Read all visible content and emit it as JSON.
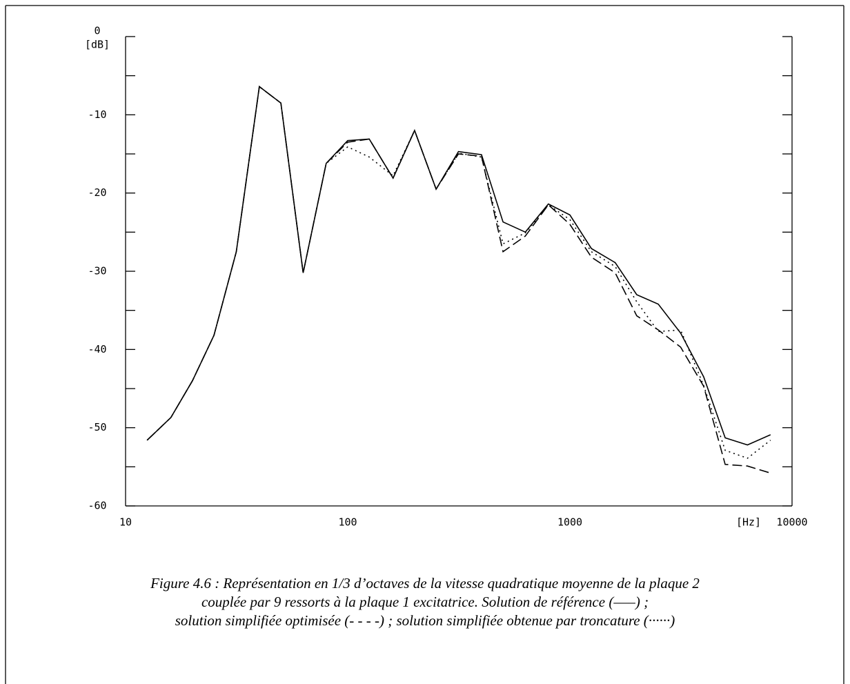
{
  "chart_data": {
    "type": "line",
    "x": [
      12.5,
      16,
      20,
      25,
      31.5,
      40,
      50,
      63,
      80,
      100,
      125,
      160,
      200,
      250,
      315,
      400,
      500,
      630,
      800,
      1000,
      1250,
      1600,
      2000,
      2500,
      3150,
      4000,
      5000,
      6300,
      8000
    ],
    "series": [
      {
        "style": "solid",
        "color": "#000000",
        "values": [
          -51.6,
          -48.7,
          -44.0,
          -38.2,
          -27.5,
          -6.4,
          -8.5,
          -30.2,
          -16.2,
          -13.3,
          -13.1,
          -18.1,
          -12.0,
          -19.5,
          -14.7,
          -15.1,
          -23.7,
          -25.0,
          -21.4,
          -22.8,
          -27.1,
          -28.9,
          -33.0,
          -34.2,
          -37.9,
          -43.5,
          -51.3,
          -52.2,
          -50.9
        ]
      },
      {
        "style": "dashed",
        "color": "#000000",
        "values": [
          -51.6,
          -48.7,
          -44.0,
          -38.2,
          -27.5,
          -6.4,
          -8.5,
          -30.2,
          -16.2,
          -13.5,
          -13.1,
          -18.1,
          -12.0,
          -19.5,
          -15.0,
          -15.3,
          -27.5,
          -25.5,
          -21.5,
          -24.0,
          -28.2,
          -30.2,
          -35.7,
          -37.5,
          -39.7,
          -44.7,
          -54.7,
          -54.9,
          -55.8
        ]
      },
      {
        "style": "dotted",
        "color": "#000000",
        "values": [
          -51.6,
          -48.7,
          -44.0,
          -38.2,
          -27.5,
          -6.4,
          -8.5,
          -30.2,
          -16.2,
          -14.1,
          -15.4,
          -17.8,
          -12.0,
          -19.5,
          -14.9,
          -15.4,
          -26.5,
          -25.1,
          -21.5,
          -23.4,
          -27.5,
          -29.4,
          -33.9,
          -37.7,
          -37.5,
          -44.6,
          -52.9,
          -53.9,
          -51.6
        ]
      }
    ],
    "xscale": "log",
    "xlim": [
      10,
      10000
    ],
    "xticks": [
      10,
      100,
      1000,
      10000
    ],
    "ylim": [
      -60,
      0
    ],
    "yticks": [
      -60,
      -50,
      -40,
      -30,
      -20,
      -10,
      0
    ],
    "yticks_minor": [
      -55,
      -45,
      -35,
      -25,
      -15,
      -5
    ],
    "y_label": "[dB]",
    "x_label": "[Hz]",
    "caption": {
      "label": "Figure 4.6",
      "lines": [
        " : Représentation en 1/3 d’octaves de la vitesse quadratique moyenne de la plaque 2",
        "couplée par 9 ressorts à la plaque 1 excitatrice. Solution de référence (–––) ;",
        "solution simplifiée optimisée (- - - -) ; solution simplifiée obtenue par troncature (······)"
      ]
    }
  }
}
